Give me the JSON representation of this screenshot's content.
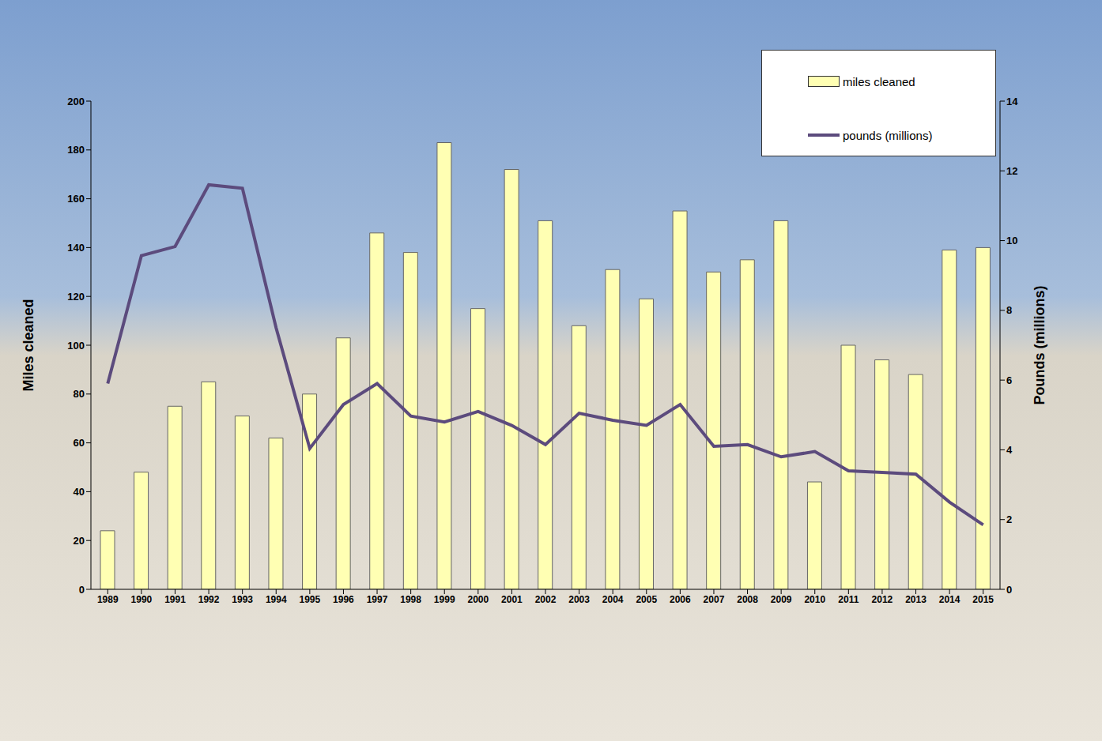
{
  "chart_data": {
    "type": "bar",
    "categories": [
      "1989",
      "1990",
      "1991",
      "1992",
      "1993",
      "1994",
      "1995",
      "1996",
      "1997",
      "1998",
      "1999",
      "2000",
      "2001",
      "2002",
      "2003",
      "2004",
      "2005",
      "2006",
      "2007",
      "2008",
      "2009",
      "2010",
      "2011",
      "2012",
      "2013",
      "2014",
      "2015"
    ],
    "series": [
      {
        "name": "miles cleaned",
        "type": "bar",
        "color": "#ffffb3",
        "values": [
          24,
          48,
          75,
          85,
          71,
          62,
          80,
          103,
          146,
          138,
          183,
          115,
          172,
          151,
          108,
          131,
          119,
          155,
          130,
          135,
          151,
          44,
          100,
          94,
          88,
          139,
          140
        ]
      },
      {
        "name": "pounds (millions)",
        "type": "line",
        "axis": "y2",
        "color": "#5c4b7d",
        "values": [
          5.9,
          9.57,
          9.83,
          11.6,
          11.5,
          7.5,
          4.04,
          5.3,
          5.9,
          4.97,
          4.8,
          5.1,
          4.7,
          4.15,
          5.05,
          4.85,
          4.7,
          5.3,
          4.1,
          4.15,
          3.8,
          3.95,
          3.4,
          3.35,
          3.3,
          2.5,
          1.85
        ]
      }
    ],
    "y_label": "Miles cleaned",
    "y2_label": "Pounds (millions)",
    "ylim": [
      0,
      200
    ],
    "yticks": [
      0,
      20,
      40,
      60,
      80,
      100,
      120,
      140,
      160,
      180,
      200
    ],
    "y2lim": [
      0,
      14
    ],
    "y2ticks": [
      0,
      2,
      4,
      6,
      8,
      10,
      12,
      14
    ],
    "legend": "top-right",
    "grid": false
  }
}
